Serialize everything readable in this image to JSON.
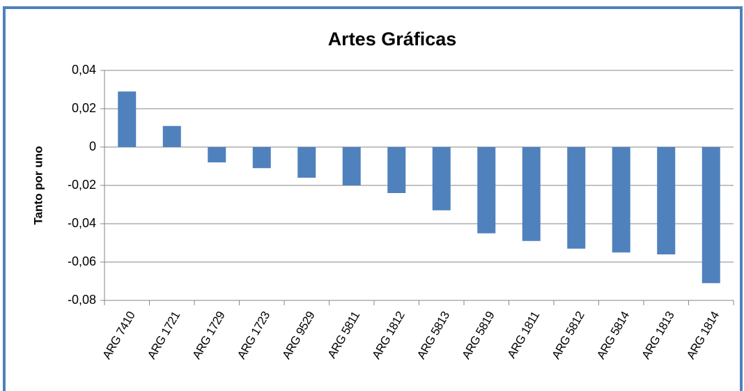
{
  "chart_data": {
    "type": "bar",
    "title": "Artes Gráficas",
    "y_label": "Tanto por uno",
    "categories": [
      "ARG 7410",
      "ARG 1721",
      "ARG 1729",
      "ARG 1723",
      "ARG 9529",
      "ARG 5811",
      "ARG 1812",
      "ARG 5813",
      "ARG 5819",
      "ARG 1811",
      "ARG 5812",
      "ARG 5814",
      "ARG 1813",
      "ARG 1814"
    ],
    "values": [
      0.029,
      0.011,
      -0.008,
      -0.011,
      -0.016,
      -0.02,
      -0.024,
      -0.033,
      -0.045,
      -0.049,
      -0.053,
      -0.055,
      -0.056,
      -0.071
    ],
    "color": "#4f81bd",
    "ylim": [
      -0.08,
      0.04
    ],
    "yticks": [
      {
        "value": -0.08,
        "label": "-0,08"
      },
      {
        "value": -0.06,
        "label": "-0,06"
      },
      {
        "value": -0.04,
        "label": "-0,04"
      },
      {
        "value": -0.02,
        "label": "-0,02"
      },
      0,
      {
        "value": 0.02,
        "label": "0,02"
      },
      {
        "value": 0.04,
        "label": "0,04"
      }
    ],
    "grid": true
  }
}
